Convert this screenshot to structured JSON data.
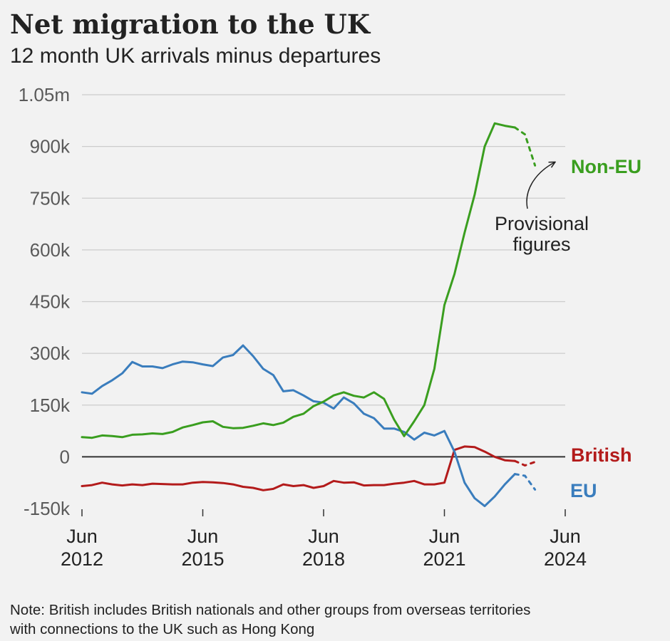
{
  "title": "Net migration to the UK",
  "subtitle": "12 month UK arrivals minus departures",
  "note": {
    "line1": "Note: British includes British nationals and other groups from overseas territories",
    "line2": "with connections to the UK such as Hong Kong"
  },
  "annotation": {
    "line1": "Provisional",
    "line2": "figures"
  },
  "colors": {
    "non_eu": "#3a9e1f",
    "eu": "#3a7dbd",
    "british": "#b31b1b",
    "zero_line": "#333333",
    "grid": "#cccccc"
  },
  "chart_data": {
    "type": "line",
    "title": "Net migration to the UK",
    "subtitle": "12 month UK arrivals minus departures",
    "y_unit": "net migration (thousands)",
    "ylim": [
      -150,
      1050
    ],
    "y_ticks": [
      -150,
      0,
      150,
      300,
      450,
      600,
      750,
      900,
      1050
    ],
    "y_tick_labels": [
      "-150k",
      "0",
      "150k",
      "300k",
      "450k",
      "600k",
      "750k",
      "900k",
      "1.05m"
    ],
    "xlim": [
      2012.5,
      2024.5
    ],
    "x_ticks": [
      2012.5,
      2015.5,
      2018.5,
      2021.5,
      2024.5
    ],
    "x_tick_labels": [
      [
        "Jun",
        "2012"
      ],
      [
        "Jun",
        "2015"
      ],
      [
        "Jun",
        "2018"
      ],
      [
        "Jun",
        "2021"
      ],
      [
        "Jun",
        "2024"
      ]
    ],
    "grid": true,
    "legend": "direct labels at line ends",
    "series": [
      {
        "name": "Non-EU",
        "color": "#3a9e1f",
        "x": [
          2012.5,
          2012.75,
          2013.0,
          2013.25,
          2013.5,
          2013.75,
          2014.0,
          2014.25,
          2014.5,
          2014.75,
          2015.0,
          2015.25,
          2015.5,
          2015.75,
          2016.0,
          2016.25,
          2016.5,
          2016.75,
          2017.0,
          2017.25,
          2017.5,
          2017.75,
          2018.0,
          2018.25,
          2018.5,
          2018.75,
          2019.0,
          2019.25,
          2019.5,
          2019.75,
          2020.0,
          2020.25,
          2020.5,
          2020.75,
          2021.0,
          2021.25,
          2021.5,
          2021.75,
          2022.0,
          2022.25,
          2022.5,
          2022.75,
          2023.0,
          2023.25,
          2023.5,
          2023.75
        ],
        "y": [
          57,
          55,
          62,
          60,
          57,
          64,
          65,
          68,
          66,
          72,
          85,
          92,
          100,
          103,
          87,
          83,
          84,
          90,
          97,
          92,
          99,
          116,
          125,
          147,
          160,
          178,
          187,
          177,
          172,
          187,
          168,
          108,
          60,
          103,
          150,
          255,
          440,
          530,
          650,
          760,
          900,
          967,
          960,
          955,
          null,
          null
        ],
        "provisional_x": [
          2023.25,
          2023.5,
          2023.75
        ],
        "provisional_y": [
          955,
          935,
          845
        ]
      },
      {
        "name": "EU",
        "color": "#3a7dbd",
        "x": [
          2012.5,
          2012.75,
          2013.0,
          2013.25,
          2013.5,
          2013.75,
          2014.0,
          2014.25,
          2014.5,
          2014.75,
          2015.0,
          2015.25,
          2015.5,
          2015.75,
          2016.0,
          2016.25,
          2016.5,
          2016.75,
          2017.0,
          2017.25,
          2017.5,
          2017.75,
          2018.0,
          2018.25,
          2018.5,
          2018.75,
          2019.0,
          2019.25,
          2019.5,
          2019.75,
          2020.0,
          2020.25,
          2020.5,
          2020.75,
          2021.0,
          2021.25,
          2021.5,
          2021.75,
          2022.0,
          2022.25,
          2022.5,
          2022.75,
          2023.0,
          2023.25,
          2023.5,
          2023.75
        ],
        "y": [
          187,
          183,
          205,
          222,
          242,
          275,
          262,
          262,
          257,
          268,
          276,
          274,
          268,
          263,
          288,
          295,
          323,
          292,
          255,
          237,
          190,
          193,
          178,
          161,
          157,
          140,
          172,
          155,
          125,
          112,
          82,
          82,
          72,
          50,
          70,
          62,
          75,
          15,
          -75,
          -120,
          -143,
          -115,
          -80,
          -50,
          null,
          null
        ],
        "provisional_x": [
          2023.25,
          2023.5,
          2023.75
        ],
        "provisional_y": [
          -50,
          -55,
          -95
        ]
      },
      {
        "name": "British",
        "color": "#b31b1b",
        "x": [
          2012.5,
          2012.75,
          2013.0,
          2013.25,
          2013.5,
          2013.75,
          2014.0,
          2014.25,
          2014.5,
          2014.75,
          2015.0,
          2015.25,
          2015.5,
          2015.75,
          2016.0,
          2016.25,
          2016.5,
          2016.75,
          2017.0,
          2017.25,
          2017.5,
          2017.75,
          2018.0,
          2018.25,
          2018.5,
          2018.75,
          2019.0,
          2019.25,
          2019.5,
          2019.75,
          2020.0,
          2020.25,
          2020.5,
          2020.75,
          2021.0,
          2021.25,
          2021.5,
          2021.75,
          2022.0,
          2022.25,
          2022.5,
          2022.75,
          2023.0,
          2023.25,
          2023.5,
          2023.75
        ],
        "y": [
          -85,
          -82,
          -75,
          -80,
          -83,
          -80,
          -82,
          -78,
          -79,
          -80,
          -80,
          -75,
          -73,
          -74,
          -76,
          -80,
          -87,
          -90,
          -97,
          -93,
          -80,
          -85,
          -82,
          -90,
          -85,
          -70,
          -75,
          -74,
          -83,
          -82,
          -82,
          -78,
          -75,
          -70,
          -80,
          -80,
          -75,
          20,
          30,
          28,
          15,
          0,
          -10,
          -12,
          null,
          null
        ],
        "provisional_x": [
          2023.25,
          2023.5,
          2023.75
        ],
        "provisional_y": [
          -12,
          -25,
          -15
        ]
      }
    ]
  }
}
